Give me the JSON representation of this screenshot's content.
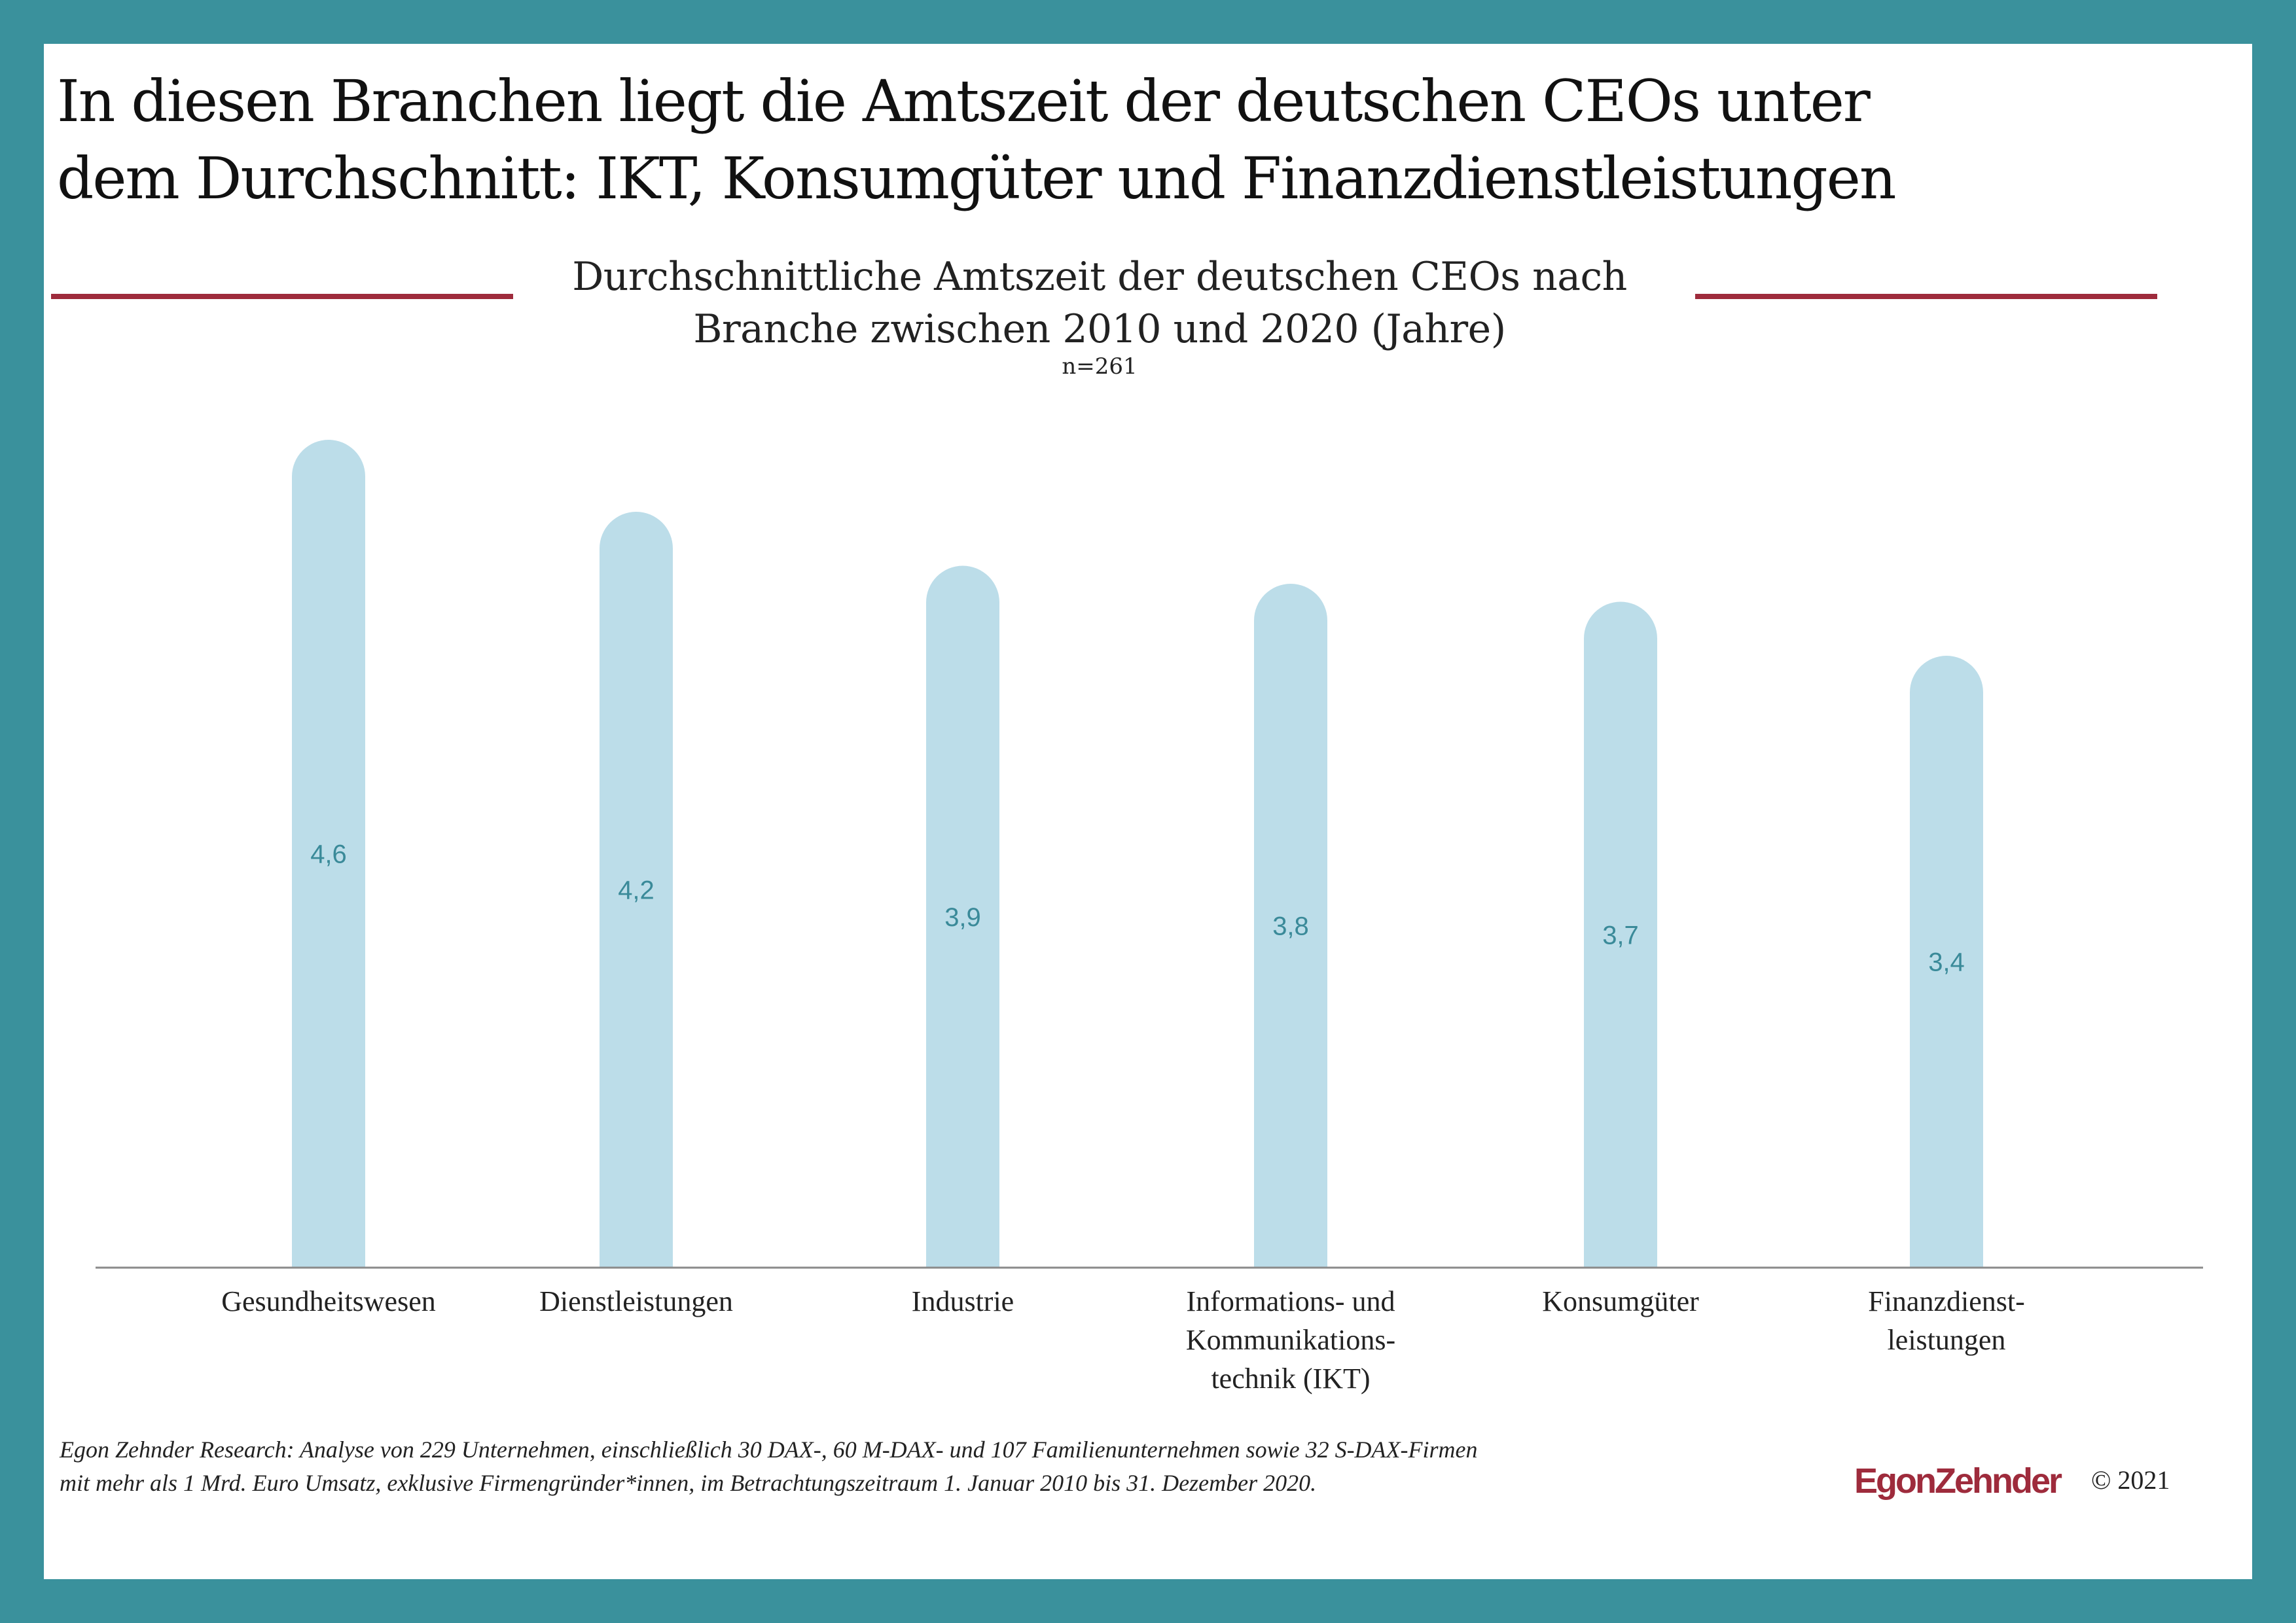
{
  "headline": {
    "line1": "In diesen Branchen liegt die Amtszeit der deutschen CEOs unter",
    "line2": "dem Durchschnitt: IKT, Konsumgüter und Finanzdienstleistungen"
  },
  "colors": {
    "frame": "#3a919c",
    "bar": "#bcdde9",
    "accent": "#9e2b3c",
    "value_label": "#3a8a99"
  },
  "chart_data": {
    "type": "bar",
    "title_line1": "Durchschnittliche Amtszeit der deutschen CEOs nach",
    "title_line2": "Branche zwischen 2010 und 2020 (Jahre)",
    "subtitle": "n=261",
    "categories": [
      [
        "Gesundheitswesen"
      ],
      [
        "Dienstleistungen"
      ],
      [
        "Industrie"
      ],
      [
        "Informations- und",
        "Kommunikations-",
        "technik (IKT)"
      ],
      [
        "Konsumgüter"
      ],
      [
        "Finanzdienst-",
        "leistungen"
      ]
    ],
    "values": [
      4.6,
      4.2,
      3.9,
      3.8,
      3.7,
      3.4
    ],
    "value_labels": [
      "4,6",
      "4,2",
      "3,9",
      "3,8",
      "3,7",
      "3,4"
    ],
    "ylim": [
      0,
      4.6
    ],
    "grid": false,
    "legend": "none"
  },
  "footnote": {
    "line1": "Egon Zehnder Research: Analyse von 229 Unternehmen, einschließlich 30 DAX-, 60 M-DAX- und 107 Familienunternehmen sowie 32 S-DAX-Firmen",
    "line2": "mit mehr als 1 Mrd. Euro Umsatz, exklusive Firmengründer*innen, im Betrachtungszeitraum 1. Januar 2010 bis 31. Dezember 2020."
  },
  "brand": {
    "logo_text": "EgonZehnder",
    "copyright": "© 2021"
  }
}
